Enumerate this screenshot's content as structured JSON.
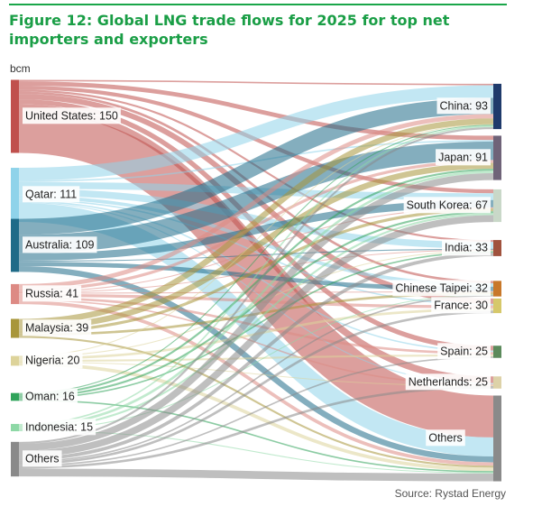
{
  "header": {
    "title": "Figure 12:  Global LNG trade flows for 2025 for top net importers and exporters",
    "unit": "bcm",
    "source": "Source: Rystad Energy"
  },
  "colors": {
    "brand_green": "#1a9e46"
  },
  "chart_data": {
    "type": "sankey",
    "title": "Global LNG trade flows for 2025 for top net importers and exporters",
    "unit": "bcm",
    "sources": [
      {
        "name": "United States",
        "value": 150,
        "label": "United States: 150",
        "color": "#c0504d"
      },
      {
        "name": "Qatar",
        "value": 111,
        "label": "Qatar: 111",
        "color": "#8fd3ea"
      },
      {
        "name": "Australia",
        "value": 109,
        "label": "Australia: 109",
        "color": "#1f6b88"
      },
      {
        "name": "Russia",
        "value": 41,
        "label": "Russia: 41",
        "color": "#dd8a84"
      },
      {
        "name": "Malaysia",
        "value": 39,
        "label": "Malaysia: 39",
        "color": "#a8963a"
      },
      {
        "name": "Nigeria",
        "value": 20,
        "label": "Nigeria: 20",
        "color": "#ddd39a"
      },
      {
        "name": "Oman",
        "value": 16,
        "label": "Oman: 16",
        "color": "#2fa35a"
      },
      {
        "name": "Indonesia",
        "value": 15,
        "label": "Indonesia: 15",
        "color": "#8ed8a6"
      },
      {
        "name": "Others",
        "value": 71,
        "label": "Others",
        "color": "#8a8a8a"
      }
    ],
    "targets": [
      {
        "name": "China",
        "value": 93,
        "label": "China: 93",
        "color": "#1f3a6b"
      },
      {
        "name": "Japan",
        "value": 91,
        "label": "Japan: 91",
        "color": "#6f6378"
      },
      {
        "name": "South Korea",
        "value": 67,
        "label": "South Korea: 67",
        "color": "#c9d8c8"
      },
      {
        "name": "India",
        "value": 33,
        "label": "India: 33",
        "color": "#a0523d"
      },
      {
        "name": "Chinese Taipei",
        "value": 32,
        "label": "Chinese Taipei: 32",
        "color": "#c8782a"
      },
      {
        "name": "France",
        "value": 30,
        "label": "France: 30",
        "color": "#d6c86a"
      },
      {
        "name": "Spain",
        "value": 25,
        "label": "Spain: 25",
        "color": "#5b8a5b"
      },
      {
        "name": "Netherlands",
        "value": 25,
        "label": "Netherlands: 25",
        "color": "#ddd2a8"
      },
      {
        "name": "Others",
        "value": 176,
        "label": "Others",
        "color": "#8a8a8a"
      }
    ],
    "links": [
      {
        "source": "United States",
        "target": "China",
        "value": 3
      },
      {
        "source": "United States",
        "target": "Japan",
        "value": 9
      },
      {
        "source": "United States",
        "target": "South Korea",
        "value": 8
      },
      {
        "source": "United States",
        "target": "India",
        "value": 4
      },
      {
        "source": "United States",
        "target": "Chinese Taipei",
        "value": 5
      },
      {
        "source": "United States",
        "target": "France",
        "value": 11
      },
      {
        "source": "United States",
        "target": "Spain",
        "value": 10
      },
      {
        "source": "United States",
        "target": "Netherlands",
        "value": 14
      },
      {
        "source": "United States",
        "target": "Others",
        "value": 86
      },
      {
        "source": "Qatar",
        "target": "China",
        "value": 26
      },
      {
        "source": "Qatar",
        "target": "Japan",
        "value": 3
      },
      {
        "source": "Qatar",
        "target": "South Korea",
        "value": 14
      },
      {
        "source": "Qatar",
        "target": "India",
        "value": 14
      },
      {
        "source": "Qatar",
        "target": "Chinese Taipei",
        "value": 7
      },
      {
        "source": "Qatar",
        "target": "France",
        "value": 3
      },
      {
        "source": "Qatar",
        "target": "Spain",
        "value": 3
      },
      {
        "source": "Qatar",
        "target": "Netherlands",
        "value": 2
      },
      {
        "source": "Qatar",
        "target": "Others",
        "value": 39
      },
      {
        "source": "Australia",
        "target": "China",
        "value": 33
      },
      {
        "source": "Australia",
        "target": "Japan",
        "value": 38
      },
      {
        "source": "Australia",
        "target": "South Korea",
        "value": 15
      },
      {
        "source": "Australia",
        "target": "India",
        "value": 2
      },
      {
        "source": "Australia",
        "target": "Chinese Taipei",
        "value": 9
      },
      {
        "source": "Australia",
        "target": "Others",
        "value": 12
      },
      {
        "source": "Russia",
        "target": "China",
        "value": 9
      },
      {
        "source": "Russia",
        "target": "Japan",
        "value": 6
      },
      {
        "source": "Russia",
        "target": "South Korea",
        "value": 2
      },
      {
        "source": "Russia",
        "target": "India",
        "value": 1
      },
      {
        "source": "Russia",
        "target": "Chinese Taipei",
        "value": 2
      },
      {
        "source": "Russia",
        "target": "France",
        "value": 6
      },
      {
        "source": "Russia",
        "target": "Spain",
        "value": 5
      },
      {
        "source": "Russia",
        "target": "Netherlands",
        "value": 3
      },
      {
        "source": "Russia",
        "target": "Others",
        "value": 7
      },
      {
        "source": "Malaysia",
        "target": "China",
        "value": 12
      },
      {
        "source": "Malaysia",
        "target": "Japan",
        "value": 12
      },
      {
        "source": "Malaysia",
        "target": "South Korea",
        "value": 6
      },
      {
        "source": "Malaysia",
        "target": "Chinese Taipei",
        "value": 5
      },
      {
        "source": "Malaysia",
        "target": "Others",
        "value": 4
      },
      {
        "source": "Nigeria",
        "target": "China",
        "value": 1
      },
      {
        "source": "Nigeria",
        "target": "India",
        "value": 2
      },
      {
        "source": "Nigeria",
        "target": "France",
        "value": 5
      },
      {
        "source": "Nigeria",
        "target": "Spain",
        "value": 4
      },
      {
        "source": "Nigeria",
        "target": "Netherlands",
        "value": 1
      },
      {
        "source": "Nigeria",
        "target": "Others",
        "value": 7
      },
      {
        "source": "Oman",
        "target": "China",
        "value": 2
      },
      {
        "source": "Oman",
        "target": "Japan",
        "value": 4
      },
      {
        "source": "Oman",
        "target": "South Korea",
        "value": 4
      },
      {
        "source": "Oman",
        "target": "India",
        "value": 3
      },
      {
        "source": "Oman",
        "target": "Others",
        "value": 3
      },
      {
        "source": "Indonesia",
        "target": "China",
        "value": 3
      },
      {
        "source": "Indonesia",
        "target": "Japan",
        "value": 5
      },
      {
        "source": "Indonesia",
        "target": "South Korea",
        "value": 4
      },
      {
        "source": "Indonesia",
        "target": "Chinese Taipei",
        "value": 1
      },
      {
        "source": "Indonesia",
        "target": "Others",
        "value": 2
      },
      {
        "source": "Others",
        "target": "China",
        "value": 4
      },
      {
        "source": "Others",
        "target": "Japan",
        "value": 14
      },
      {
        "source": "Others",
        "target": "South Korea",
        "value": 14
      },
      {
        "source": "Others",
        "target": "India",
        "value": 7
      },
      {
        "source": "Others",
        "target": "Chinese Taipei",
        "value": 3
      },
      {
        "source": "Others",
        "target": "France",
        "value": 5
      },
      {
        "source": "Others",
        "target": "Spain",
        "value": 3
      },
      {
        "source": "Others",
        "target": "Netherlands",
        "value": 5
      },
      {
        "source": "Others",
        "target": "Others",
        "value": 16
      }
    ]
  }
}
